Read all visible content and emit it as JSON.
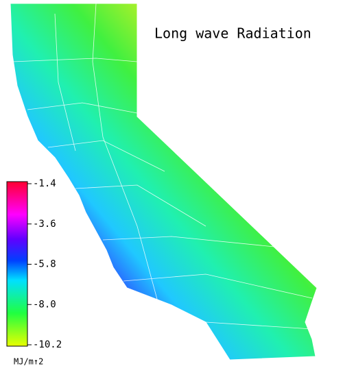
{
  "title": "Long wave Radiation",
  "colorbar": {
    "lim": [
      -10.2,
      -1.4
    ],
    "ticks": [
      -1.4,
      -3.6,
      -5.8,
      {
        "value": -8,
        "label": "-8.0"
      },
      -10.2
    ],
    "unit": "MJ/m↑2"
  }
}
